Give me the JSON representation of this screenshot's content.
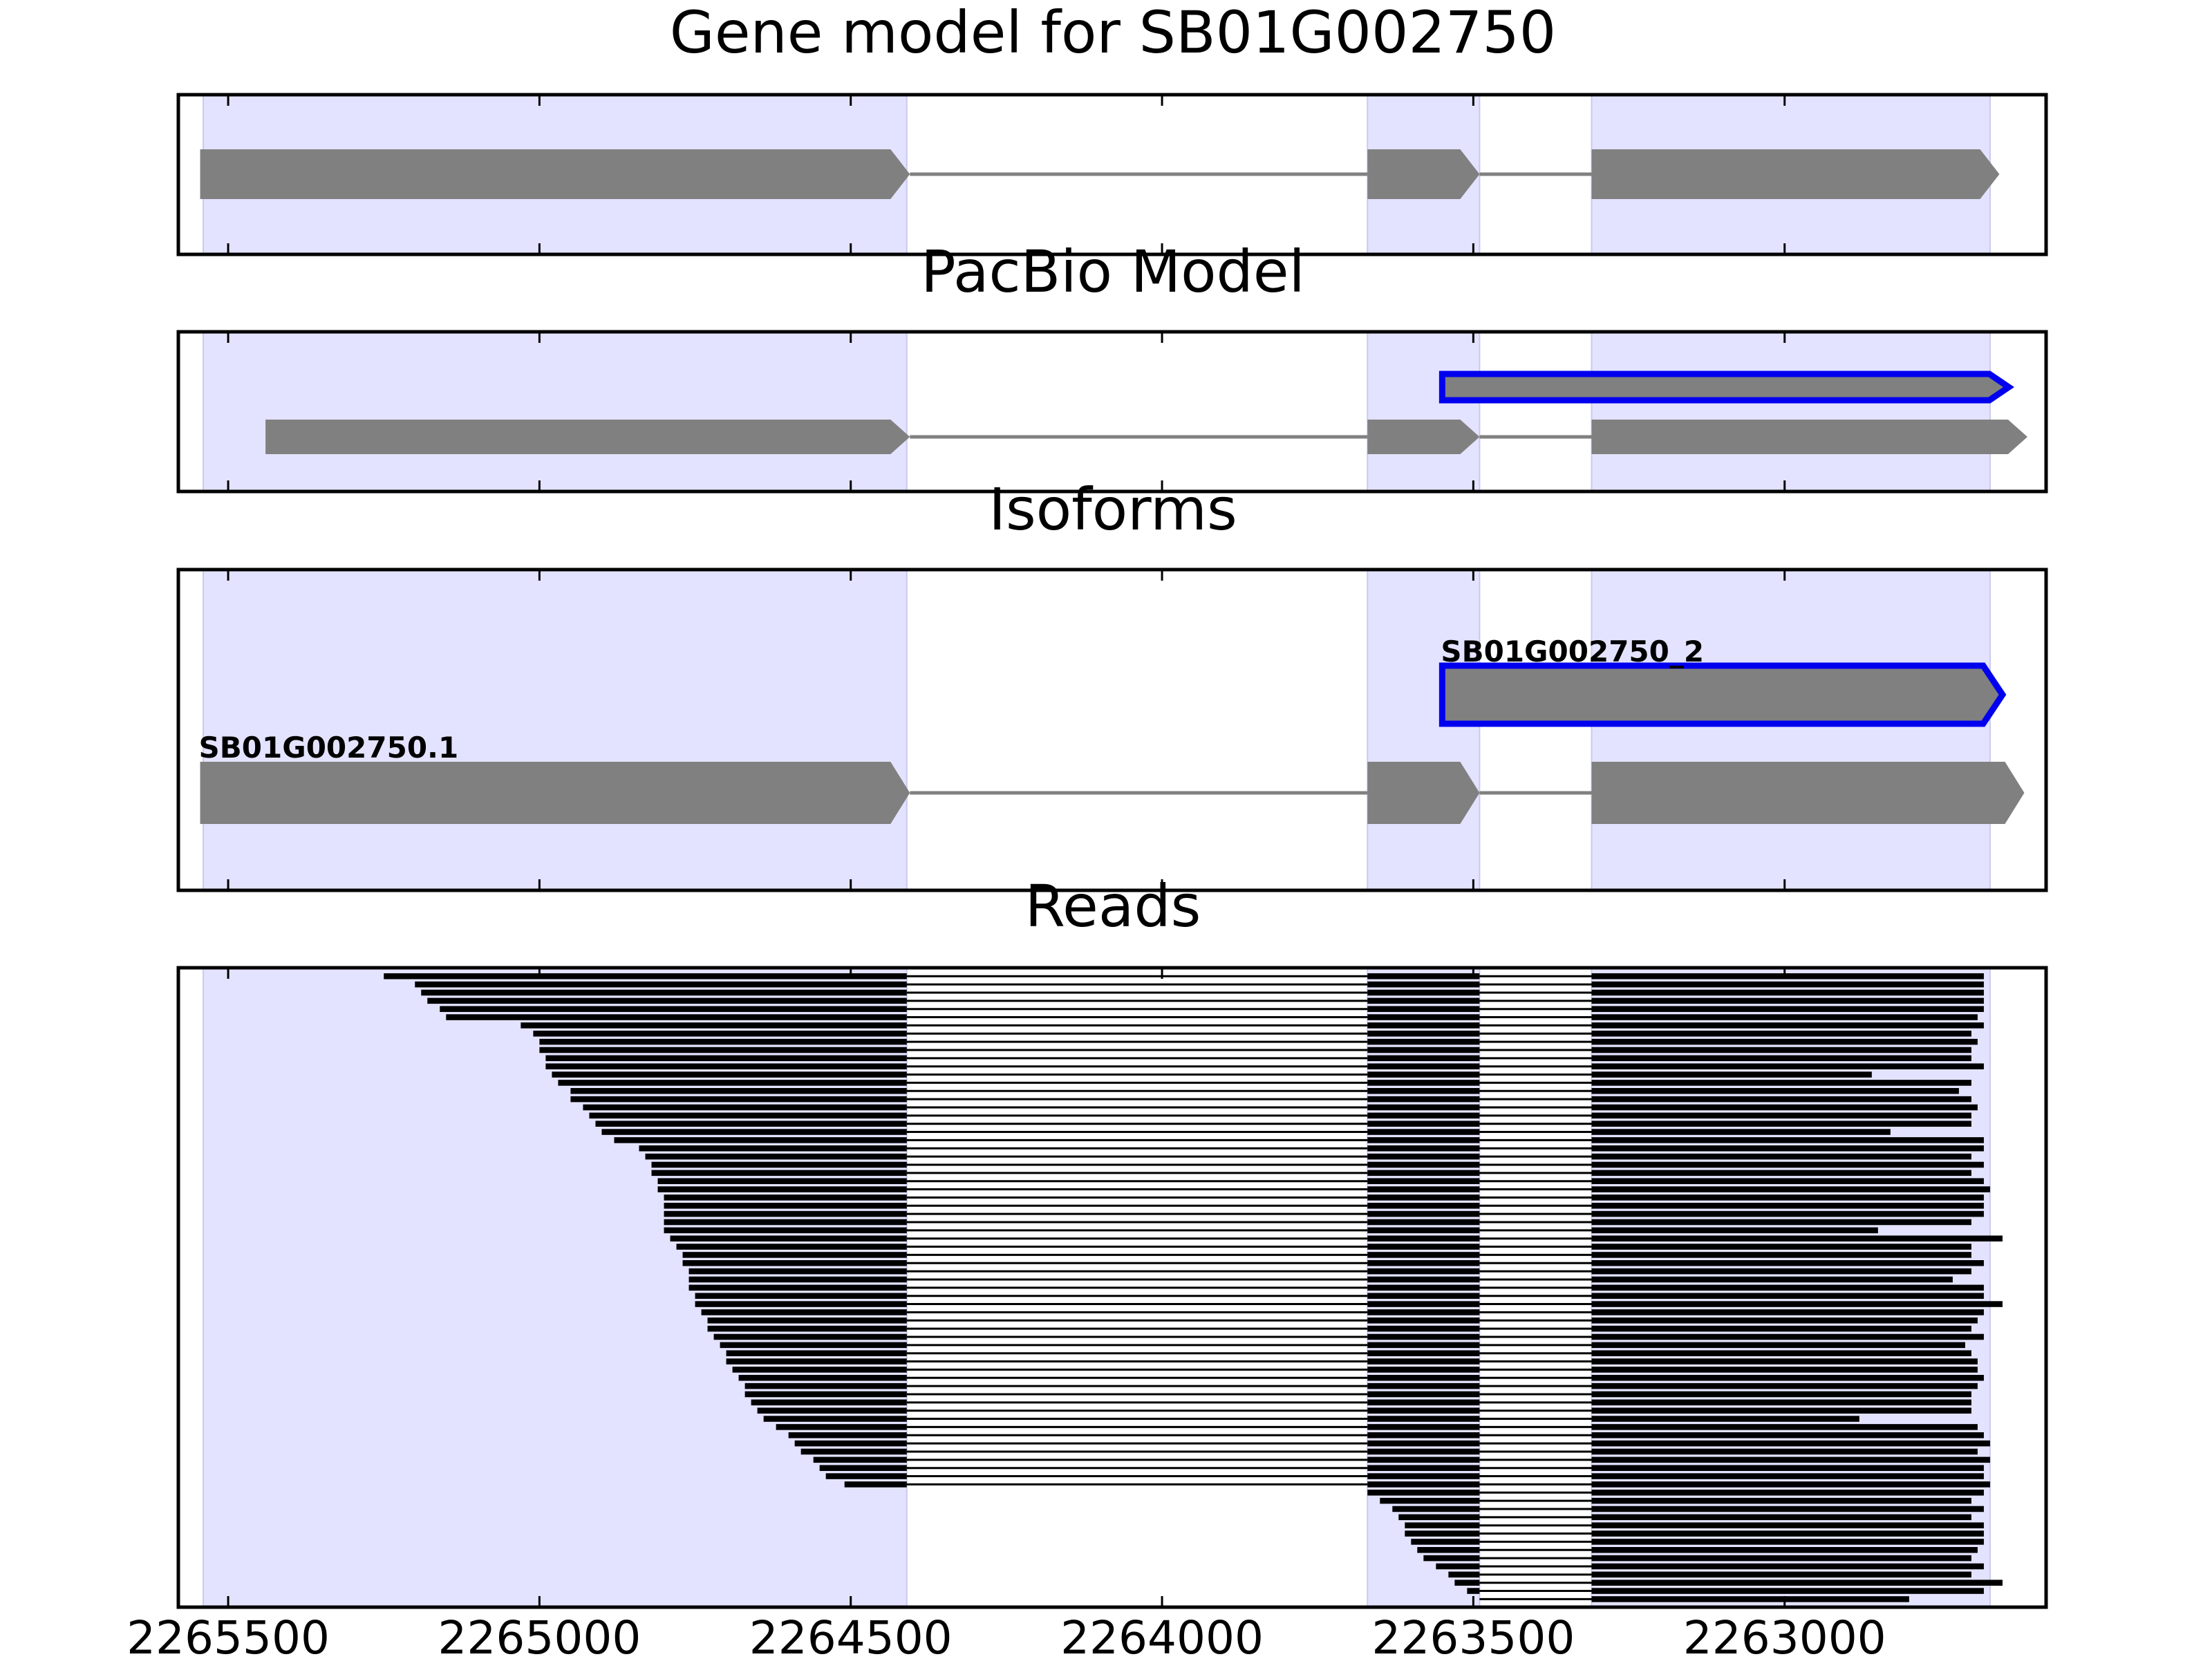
{
  "chart_data": {
    "type": "gene-track",
    "x_axis": {
      "reversed": true,
      "range": [
        2265580,
        2262580
      ],
      "ticks": [
        2265500,
        2265000,
        2264500,
        2264000,
        2263500,
        2263000
      ],
      "tick_labels": [
        "2265500",
        "2265000",
        "2264500",
        "2264000",
        "2263500",
        "2263000"
      ]
    },
    "grid": false,
    "highlight_color": "#e3e3ff",
    "exon_color": "#808080",
    "intron_color": "#808080",
    "selected_outline_color": "#0000ee",
    "read_color": "#000000",
    "highlight_regions": [
      [
        2265540,
        2264410
      ],
      [
        2263670,
        2263490
      ],
      [
        2263310,
        2262670
      ]
    ],
    "panels": [
      {
        "title": "Gene model for SB01G002750",
        "tracks": [
          {
            "label": "",
            "selected": false,
            "exons": [
              [
                2265545,
                2264405
              ],
              [
                2263670,
                2263490
              ],
              [
                2263310,
                2262655
              ]
            ]
          }
        ]
      },
      {
        "title": "PacBio Model",
        "tracks": [
          {
            "label": "",
            "selected": true,
            "exons": [
              [
                2263550,
                2262640
              ]
            ]
          },
          {
            "label": "",
            "selected": false,
            "exons": [
              [
                2265440,
                2264405
              ],
              [
                2263670,
                2263490
              ],
              [
                2263310,
                2262610
              ]
            ]
          }
        ]
      },
      {
        "title": "Isoforms",
        "tracks": [
          {
            "label": "SB01G002750_2",
            "selected": true,
            "exons": [
              [
                2263550,
                2262650
              ]
            ]
          },
          {
            "label": "SB01G002750.1",
            "selected": false,
            "exons": [
              [
                2265545,
                2264405
              ],
              [
                2263670,
                2263490
              ],
              [
                2263310,
                2262615
              ]
            ]
          }
        ]
      },
      {
        "title": "Reads",
        "read_lower_exon_end": 2264410,
        "read_upper_exon_start": 2263310,
        "reads_spliced": [
          [
            2265250,
            2262680
          ],
          [
            2265200,
            2262680
          ],
          [
            2265190,
            2262680
          ],
          [
            2265180,
            2262680
          ],
          [
            2265160,
            2262680
          ],
          [
            2265150,
            2262690
          ],
          [
            2265030,
            2262680
          ],
          [
            2265010,
            2262700
          ],
          [
            2265000,
            2262690
          ],
          [
            2265000,
            2262700
          ],
          [
            2264990,
            2262700
          ],
          [
            2264990,
            2262680
          ],
          [
            2264980,
            2262860
          ],
          [
            2264970,
            2262700
          ],
          [
            2264950,
            2262720
          ],
          [
            2264950,
            2262700
          ],
          [
            2264930,
            2262690
          ],
          [
            2264920,
            2262700
          ],
          [
            2264910,
            2262700
          ],
          [
            2264900,
            2262830
          ],
          [
            2264880,
            2262680
          ],
          [
            2264840,
            2262680
          ],
          [
            2264830,
            2262700
          ],
          [
            2264820,
            2262680
          ],
          [
            2264820,
            2262700
          ],
          [
            2264810,
            2262680
          ],
          [
            2264810,
            2262670
          ],
          [
            2264800,
            2262680
          ],
          [
            2264800,
            2262680
          ],
          [
            2264800,
            2262680
          ],
          [
            2264800,
            2262700
          ],
          [
            2264800,
            2262850
          ],
          [
            2264790,
            2262650
          ],
          [
            2264780,
            2262700
          ],
          [
            2264770,
            2262700
          ],
          [
            2264770,
            2262680
          ],
          [
            2264760,
            2262700
          ],
          [
            2264760,
            2262730
          ],
          [
            2264760,
            2262680
          ],
          [
            2264750,
            2262680
          ],
          [
            2264750,
            2262650
          ],
          [
            2264740,
            2262680
          ],
          [
            2264730,
            2262690
          ],
          [
            2264730,
            2262700
          ],
          [
            2264720,
            2262680
          ],
          [
            2264710,
            2262710
          ],
          [
            2264700,
            2262700
          ],
          [
            2264700,
            2262690
          ],
          [
            2264690,
            2262690
          ],
          [
            2264680,
            2262680
          ],
          [
            2264670,
            2262690
          ],
          [
            2264670,
            2262700
          ],
          [
            2264660,
            2262700
          ],
          [
            2264650,
            2262700
          ],
          [
            2264640,
            2262880
          ],
          [
            2264620,
            2262690
          ],
          [
            2264600,
            2262680
          ],
          [
            2264590,
            2262670
          ],
          [
            2264580,
            2262690
          ],
          [
            2264560,
            2262670
          ],
          [
            2264550,
            2262680
          ],
          [
            2264540,
            2262680
          ],
          [
            2264510,
            2262670
          ]
        ],
        "reads_upstream_start": [
          [
            2263670,
            2262680
          ],
          [
            2263650,
            2262700
          ],
          [
            2263630,
            2262680
          ],
          [
            2263620,
            2262700
          ],
          [
            2263610,
            2262680
          ],
          [
            2263610,
            2262680
          ],
          [
            2263600,
            2262680
          ],
          [
            2263590,
            2262690
          ],
          [
            2263580,
            2262700
          ],
          [
            2263560,
            2262680
          ],
          [
            2263540,
            2262700
          ],
          [
            2263530,
            2262650
          ],
          [
            2263510,
            2262680
          ],
          [
            2263490,
            2262800
          ]
        ]
      }
    ]
  }
}
